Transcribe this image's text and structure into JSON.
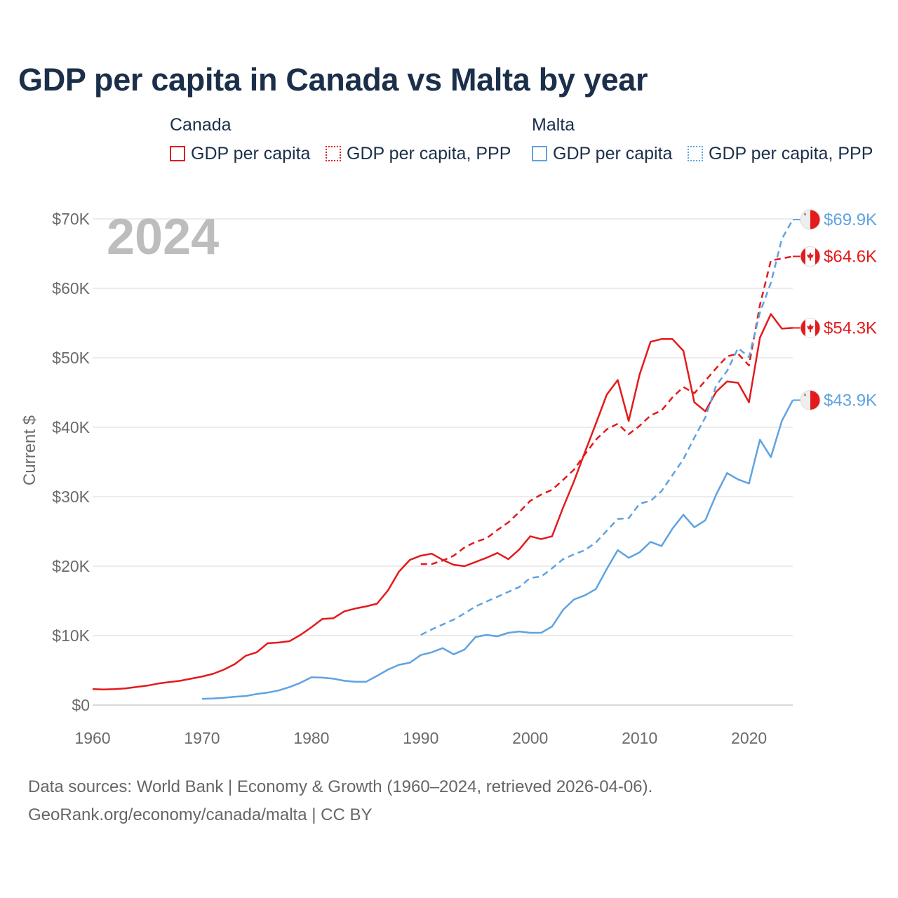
{
  "title": "GDP per capita in Canada vs Malta by year",
  "legend": {
    "groups": [
      {
        "name": "Canada",
        "items": [
          {
            "label": "GDP per capita",
            "style": "solid",
            "color": "#e41a1c"
          },
          {
            "label": "GDP per capita, PPP",
            "style": "dotted",
            "color": "#e41a1c"
          }
        ]
      },
      {
        "name": "Malta",
        "items": [
          {
            "label": "GDP per capita",
            "style": "solid",
            "color": "#5fa3e0"
          },
          {
            "label": "GDP per capita, PPP",
            "style": "dotted",
            "color": "#5fa3e0"
          }
        ]
      }
    ]
  },
  "chart_data": {
    "type": "line",
    "year_watermark": "2024",
    "ylabel": "Current $",
    "xlabel": "",
    "xlim": [
      1960,
      2024
    ],
    "ylim": [
      0,
      70000
    ],
    "x_ticks": [
      1960,
      1970,
      1980,
      1990,
      2000,
      2010,
      2020
    ],
    "y_ticks": [
      {
        "value": 0,
        "label": "$0"
      },
      {
        "value": 10000,
        "label": "$10K"
      },
      {
        "value": 20000,
        "label": "$20K"
      },
      {
        "value": 30000,
        "label": "$30K"
      },
      {
        "value": 40000,
        "label": "$40K"
      },
      {
        "value": 50000,
        "label": "$50K"
      },
      {
        "value": 60000,
        "label": "$60K"
      },
      {
        "value": 70000,
        "label": "$70K"
      }
    ],
    "series": [
      {
        "name": "Canada GDP per capita",
        "country": "canada",
        "color": "#e41a1c",
        "dash": "solid",
        "end_label": "$54.3K",
        "x_start": 1960,
        "values": [
          2300,
          2250,
          2300,
          2400,
          2600,
          2800,
          3100,
          3300,
          3500,
          3800,
          4100,
          4500,
          5100,
          5900,
          7100,
          7600,
          8900,
          9000,
          9200,
          10100,
          11200,
          12400,
          12500,
          13500,
          13900,
          14200,
          14600,
          16500,
          19200,
          20900,
          21500,
          21800,
          20900,
          20200,
          20000,
          20600,
          21200,
          21900,
          21000,
          22400,
          24300,
          23900,
          24300,
          28400,
          32200,
          36400,
          40500,
          44700,
          46800,
          40900,
          47600,
          52300,
          52700,
          52700,
          51000,
          43600,
          42300,
          45100,
          46600,
          46400,
          43600,
          52900,
          56300,
          54200,
          54300
        ]
      },
      {
        "name": "Canada GDP per capita, PPP",
        "country": "canada",
        "color": "#e41a1c",
        "dash": "dashed",
        "end_label": "$64.6K",
        "x_start": 1990,
        "values": [
          20300,
          20300,
          20800,
          21500,
          22700,
          23500,
          24000,
          25200,
          26300,
          27800,
          29400,
          30300,
          31000,
          32400,
          33900,
          36100,
          38200,
          39700,
          40500,
          39000,
          40200,
          41700,
          42400,
          44300,
          45800,
          44900,
          46700,
          48500,
          50200,
          50600,
          48900,
          57600,
          64000,
          64300,
          64600
        ]
      },
      {
        "name": "Malta GDP per capita",
        "country": "malta",
        "color": "#5fa3e0",
        "dash": "solid",
        "end_label": "$43.9K",
        "x_start": 1970,
        "values": [
          900,
          950,
          1050,
          1200,
          1300,
          1600,
          1800,
          2100,
          2600,
          3200,
          4000,
          3950,
          3800,
          3500,
          3350,
          3350,
          4200,
          5100,
          5800,
          6100,
          7200,
          7600,
          8200,
          7300,
          8000,
          9800,
          10100,
          9900,
          10400,
          10600,
          10400,
          10400,
          11300,
          13700,
          15200,
          15800,
          16700,
          19600,
          22300,
          21200,
          22000,
          23500,
          22900,
          25400,
          27400,
          25600,
          26600,
          30300,
          33400,
          32500,
          31900,
          38200,
          35700,
          40900,
          43900
        ]
      },
      {
        "name": "Malta GDP per capita, PPP",
        "country": "malta",
        "color": "#5fa3e0",
        "dash": "dashed",
        "end_label": "$69.9K",
        "x_start": 1990,
        "values": [
          10100,
          10900,
          11600,
          12300,
          13200,
          14200,
          14900,
          15600,
          16300,
          17000,
          18300,
          18500,
          19700,
          21000,
          21700,
          22300,
          23400,
          25100,
          26800,
          26900,
          29000,
          29400,
          30800,
          33100,
          35400,
          38500,
          41400,
          46000,
          48100,
          51400,
          50100,
          56500,
          60800,
          67100,
          69900
        ]
      }
    ]
  },
  "footer": {
    "line1": "Data sources: World Bank | Economy & Growth (1960–2024, retrieved 2026-04-06).",
    "line2": "GeoRank.org/economy/canada/malta | CC BY"
  }
}
